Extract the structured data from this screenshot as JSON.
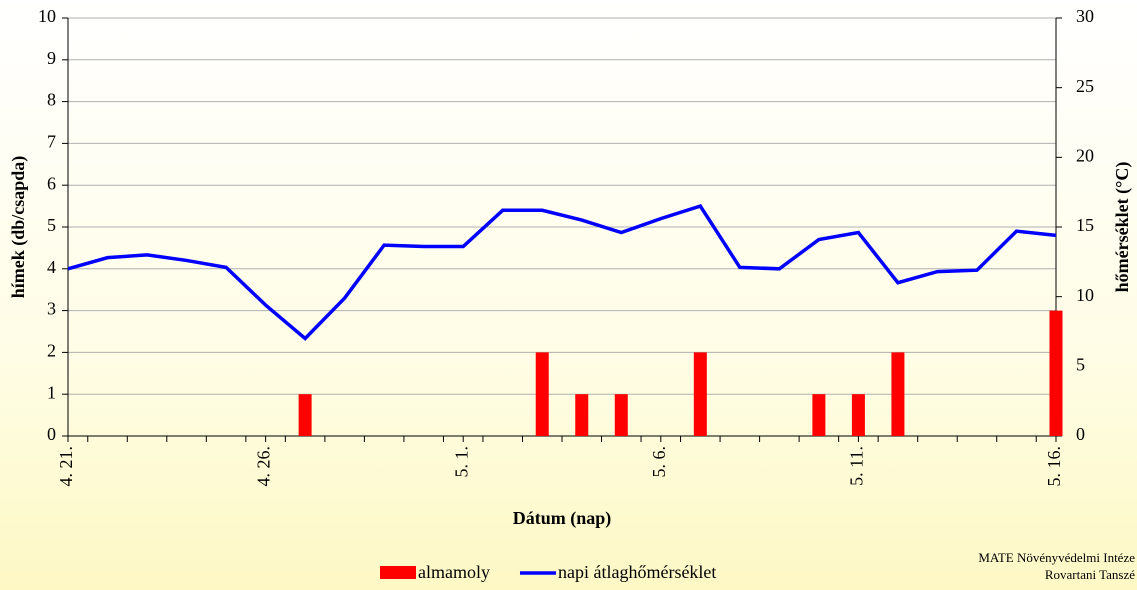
{
  "chart_data": {
    "type": "bar-line",
    "categories": [
      "4. 21.",
      null,
      null,
      null,
      null,
      "4. 26.",
      null,
      null,
      null,
      null,
      "5. 1.",
      null,
      null,
      null,
      null,
      "5. 6.",
      null,
      null,
      null,
      null,
      "5. 11.",
      null,
      null,
      null,
      null,
      "5. 16."
    ],
    "series": [
      {
        "name": "almamoly",
        "color": "#ff0000",
        "type": "bar",
        "values": [
          0,
          0,
          0,
          0,
          0,
          0,
          1,
          0,
          0,
          0,
          0,
          0,
          2,
          1,
          1,
          0,
          2,
          0,
          0,
          1,
          1,
          2,
          0,
          0,
          0,
          3
        ]
      },
      {
        "name": "napi átlaghőmérséklet",
        "color": "#0000ff",
        "type": "line",
        "axis": "y2",
        "values": [
          12.0,
          12.8,
          13.0,
          12.6,
          12.1,
          9.4,
          7.0,
          9.9,
          13.7,
          13.6,
          13.6,
          16.2,
          16.2,
          15.5,
          14.6,
          15.6,
          16.5,
          12.1,
          12.0,
          14.1,
          14.6,
          11.0,
          11.8,
          11.9,
          14.7,
          14.4
        ]
      }
    ],
    "ylabel": "hímek (db/csapda)",
    "y2label": "hőmérséklet (°C)",
    "xlabel": "Dátum (nap)",
    "ylim": [
      0,
      10
    ],
    "yticks": [
      0,
      1,
      2,
      3,
      4,
      5,
      6,
      7,
      8,
      9,
      10
    ],
    "y2lim": [
      0,
      30
    ],
    "y2ticks": [
      0,
      5,
      10,
      15,
      20,
      25,
      30
    ],
    "grid": true,
    "credit": [
      "MATE Növényvédelmi Intéze",
      "Rovartani Tanszé"
    ]
  }
}
